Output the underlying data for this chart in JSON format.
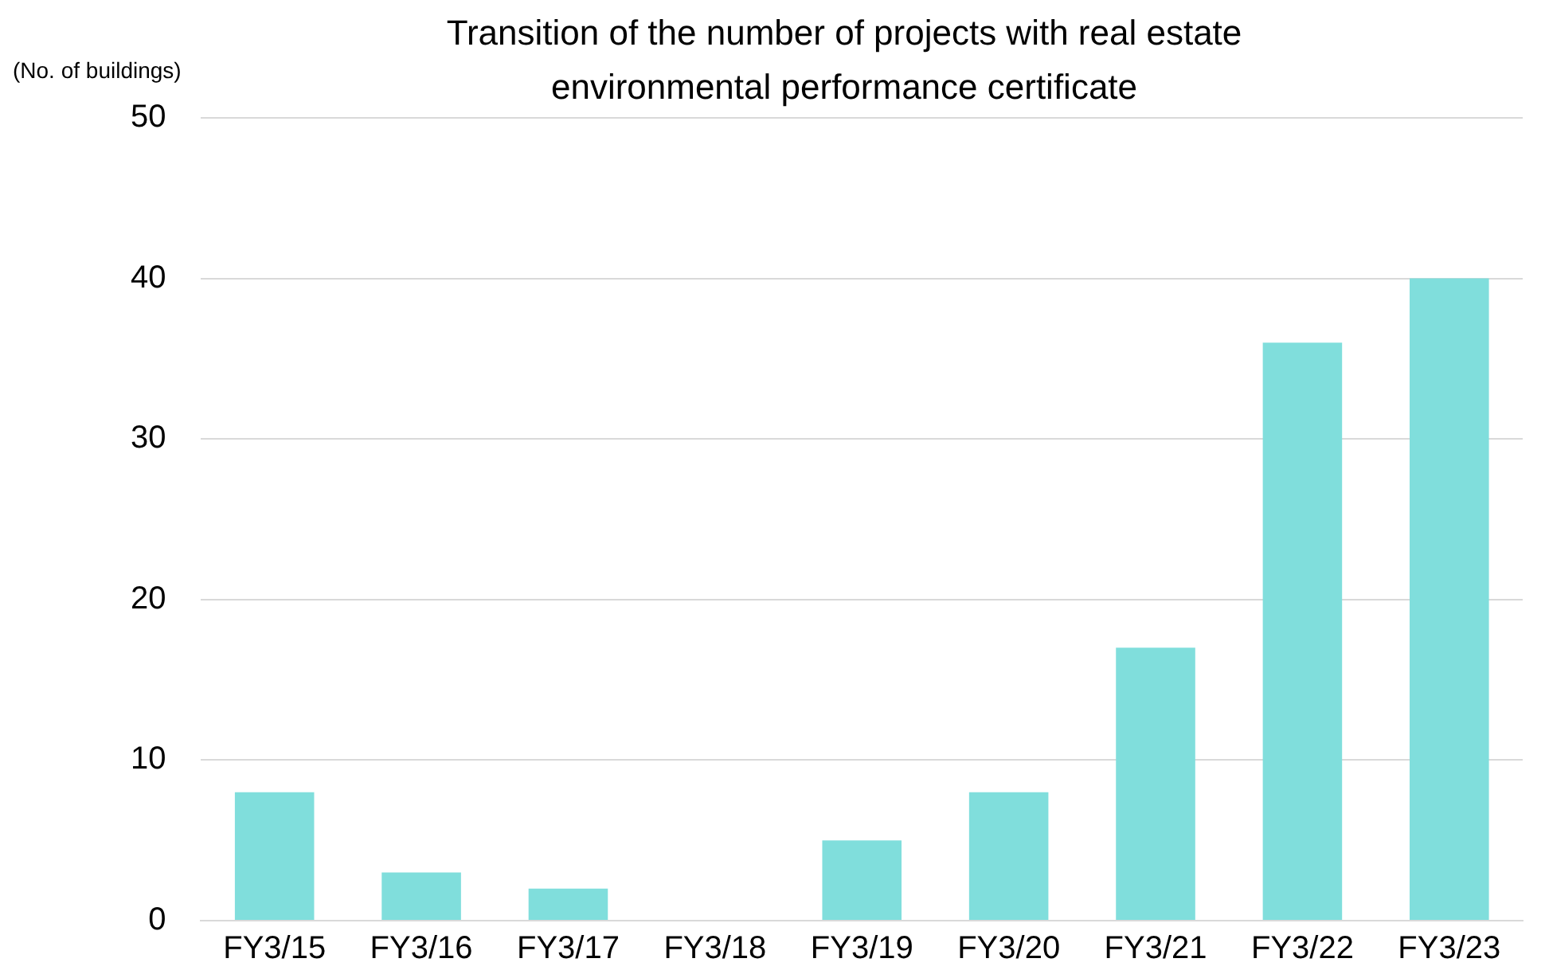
{
  "chart_data": {
    "type": "bar",
    "title": "Transition of the number of projects with real estate environmental performance certificate",
    "ylabel": "(No. of buildings)",
    "categories": [
      "FY3/15",
      "FY3/16",
      "FY3/17",
      "FY3/18",
      "FY3/19",
      "FY3/20",
      "FY3/21",
      "FY3/22",
      "FY3/23"
    ],
    "values": [
      8,
      3,
      2,
      0,
      5,
      8,
      17,
      36,
      40
    ],
    "color": "#80dedc",
    "ylim": [
      0,
      50
    ],
    "yticks": [
      0,
      10,
      20,
      30,
      40,
      50
    ],
    "grid": "y",
    "legend": false
  }
}
